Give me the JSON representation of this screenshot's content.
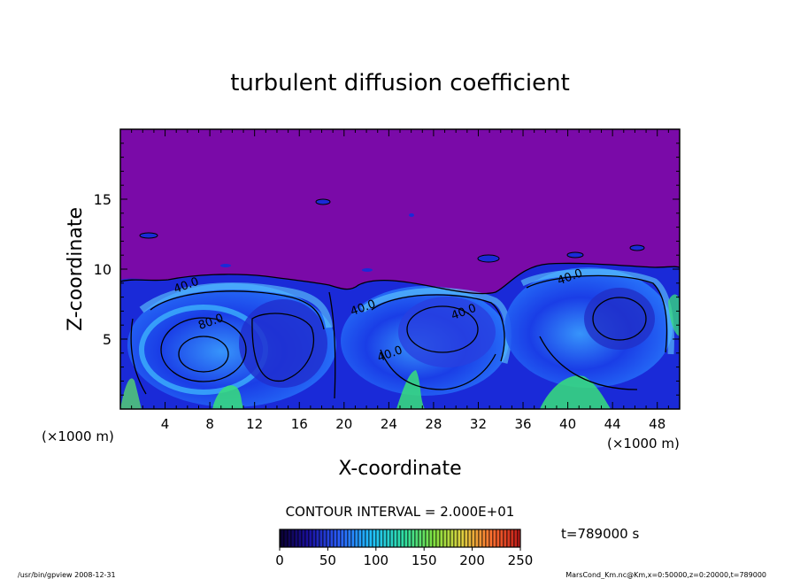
{
  "chart_data": {
    "type": "heatmap",
    "title": "turbulent diffusion coefficient",
    "xlabel": "X-coordinate",
    "ylabel": "Z-coordinate",
    "x_unit_left": "(×1000 m)",
    "x_unit_right": "(×1000 m)",
    "xlim": [
      0,
      50
    ],
    "ylim": [
      0,
      20
    ],
    "x_ticks": [
      "4",
      "8",
      "12",
      "16",
      "20",
      "24",
      "28",
      "32",
      "36",
      "40",
      "44",
      "48"
    ],
    "y_ticks": [
      "5",
      "10",
      "15"
    ],
    "contour_interval_text": "CONTOUR INTERVAL = 2.000E+01",
    "contour_labels": [
      {
        "text": "80.0",
        "x": 8.2,
        "z": 6.0
      },
      {
        "text": "40.0",
        "x": 6.0,
        "z": 8.6
      },
      {
        "text": "40.0",
        "x": 21.8,
        "z": 7.0
      },
      {
        "text": "40.0",
        "x": 24.2,
        "z": 3.7
      },
      {
        "text": "40.0",
        "x": 30.8,
        "z": 6.7
      },
      {
        "text": "40.0",
        "x": 40.3,
        "z": 9.2
      }
    ],
    "colorbar": {
      "ticks": [
        "0",
        "50",
        "100",
        "150",
        "200",
        "250"
      ],
      "range": [
        0,
        250
      ]
    },
    "time_label": "t=789000 s",
    "colors": {
      "background_field": "#7a0aa8",
      "low": "#1a10c8",
      "mid": "#1aa0ff",
      "high": "#38e07a"
    }
  },
  "footer": {
    "program": "/usr/bin/gpview   2008-12-31",
    "source": "MarsCond_Km.nc@Km,x=0:50000,z=0:20000,t=789000"
  }
}
